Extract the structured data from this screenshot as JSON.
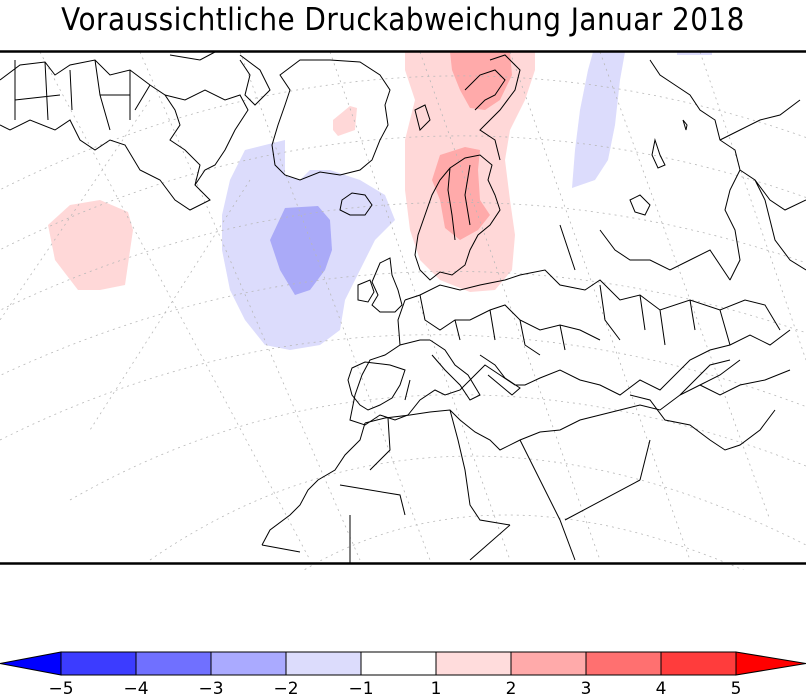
{
  "title": "Voraussichtliche Druckabweichung Januar 2018",
  "map": {
    "projection": "polar stereographic (North Atlantic / Europe)",
    "region": "North America (east), Greenland, North Atlantic, Europe, North Africa, Middle East",
    "graticule": "dotted grey lat/lon lines",
    "anomaly_areas": [
      {
        "name": "greenland-sea-positive",
        "level": "1 to 2",
        "color": "#ffd8d8",
        "location": "Norwegian Sea / Svalbard to Scandinavia"
      },
      {
        "name": "svalbard-core",
        "level": "2 to 3",
        "color": "#ffaaaa",
        "location": "Svalbard / Barents Sea"
      },
      {
        "name": "scandinavia-core",
        "level": "2 to 3",
        "color": "#ffaaaa",
        "location": "Scandinavia"
      },
      {
        "name": "north-atlantic-negative",
        "level": "-2 to -1",
        "color": "#dcdcfc",
        "location": "North Atlantic south of Greenland"
      },
      {
        "name": "north-atlantic-core",
        "level": "-3 to -2",
        "color": "#aaaaf8",
        "location": "North Atlantic south of Greenland"
      },
      {
        "name": "west-atlantic-positive",
        "level": "1 to 2",
        "color": "#ffd8d8",
        "location": "Western Atlantic"
      },
      {
        "name": "greenland-positive",
        "level": "1 to 2",
        "color": "#ffd8d8",
        "location": "Central Greenland"
      },
      {
        "name": "russia-negative",
        "level": "-2 to -1",
        "color": "#dcdcfc",
        "location": "Northwest Russia"
      },
      {
        "name": "siberia-negative",
        "level": "-2 to -1",
        "color": "#dcdcfc",
        "location": "top edge, northern Siberia"
      }
    ]
  },
  "colorbar": {
    "labels": [
      "-5",
      "-4",
      "-3",
      "-2",
      "-1",
      "1",
      "2",
      "3",
      "4",
      "5"
    ],
    "under_color": "#0000ff",
    "over_color": "#ff0000",
    "bins": [
      {
        "from": -5,
        "to": -4,
        "color": "#3c3cff"
      },
      {
        "from": -4,
        "to": -3,
        "color": "#7070ff"
      },
      {
        "from": -3,
        "to": -2,
        "color": "#aaaaff"
      },
      {
        "from": -2,
        "to": -1,
        "color": "#dcdcfc"
      },
      {
        "from": -1,
        "to": 1,
        "color": "#ffffff"
      },
      {
        "from": 1,
        "to": 2,
        "color": "#ffdcdc"
      },
      {
        "from": 2,
        "to": 3,
        "color": "#ffaaaa"
      },
      {
        "from": 3,
        "to": 4,
        "color": "#ff7070"
      },
      {
        "from": 4,
        "to": 5,
        "color": "#ff3c3c"
      }
    ]
  }
}
